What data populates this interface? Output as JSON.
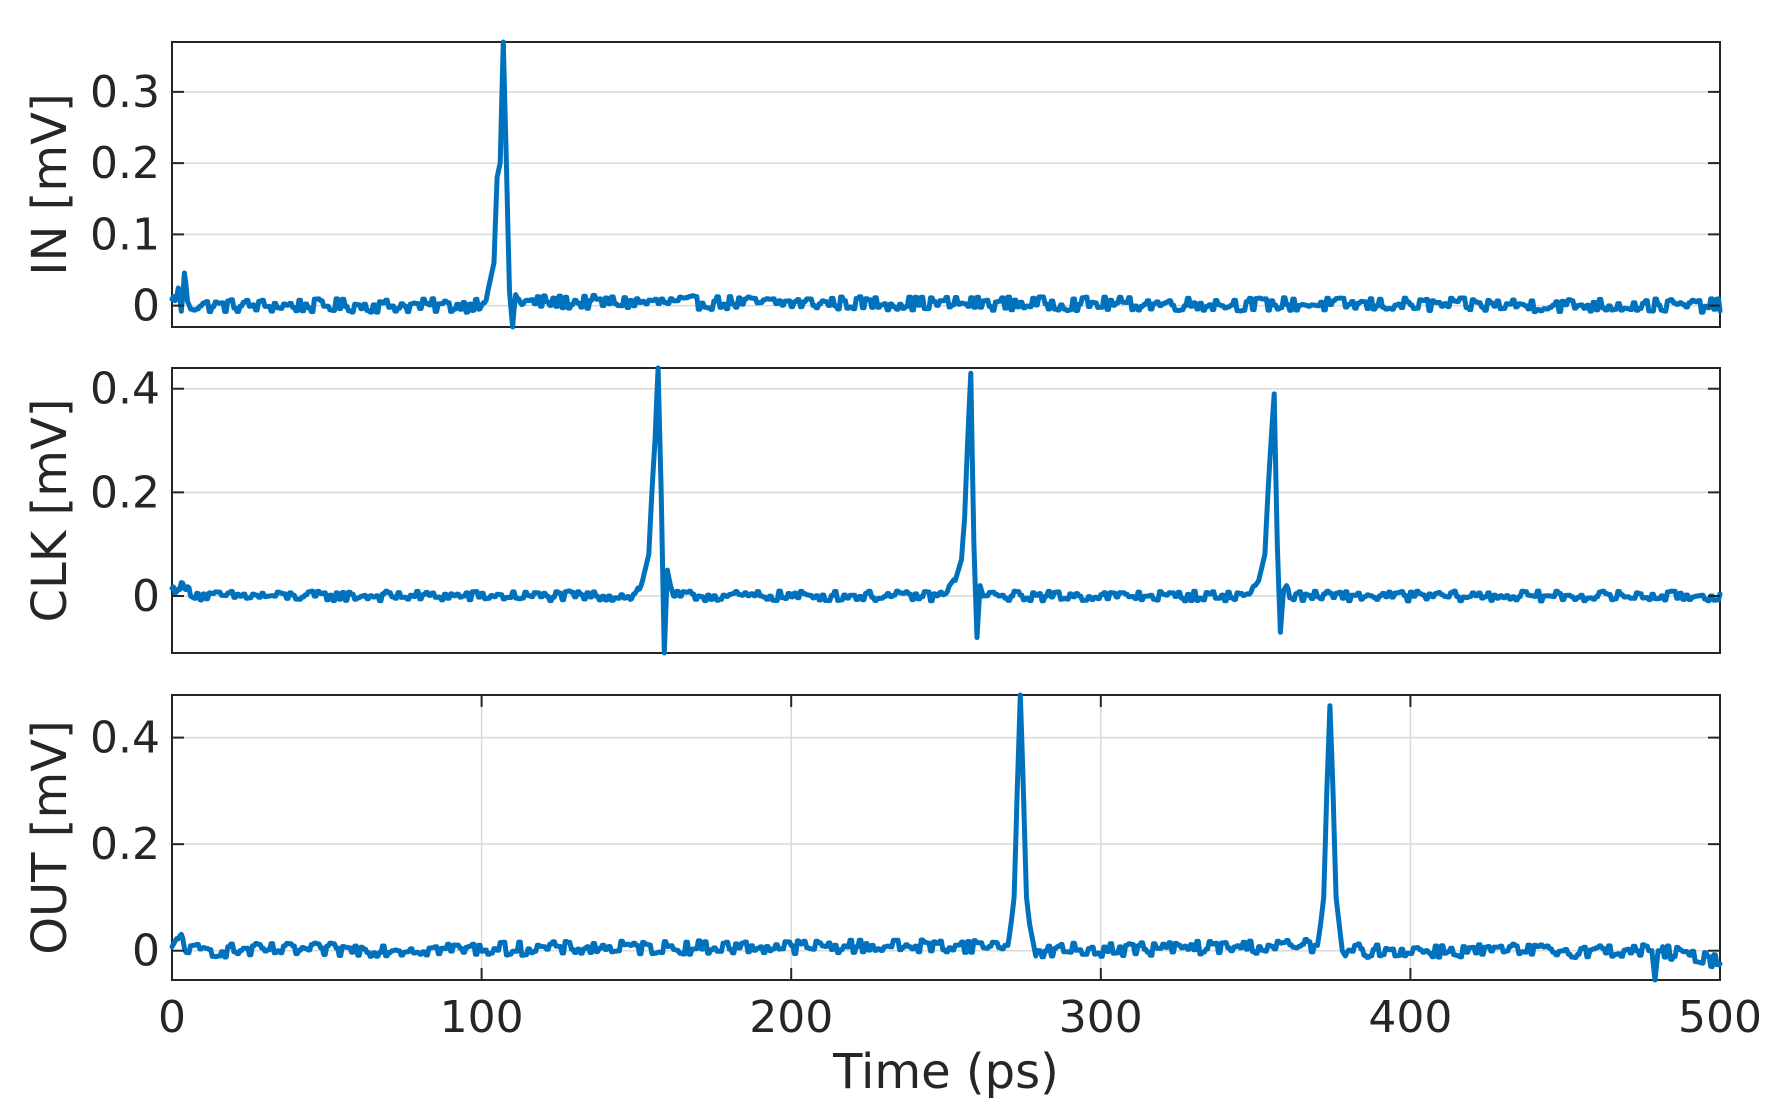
{
  "chart_data": [
    {
      "type": "line",
      "title": "",
      "xlabel": "",
      "ylabel": "IN [mV]",
      "xlim": [
        0,
        500
      ],
      "ylim": [
        -0.03,
        0.37
      ],
      "yticks": [
        0,
        0.1,
        0.2,
        0.3
      ],
      "ytick_labels": [
        "0",
        "0.1",
        "0.2",
        "0.3"
      ],
      "xticks_visible": false,
      "grid": "horizontal",
      "color": "#0072BD",
      "noise": 0.006,
      "series": [
        {
          "x": [
            0,
            2,
            3,
            4,
            5,
            6,
            95,
            100,
            102,
            104,
            105,
            106,
            107,
            108,
            109,
            110,
            111,
            112,
            113,
            115,
            500
          ],
          "y": [
            0.005,
            0.02,
            -0.005,
            0.04,
            0.01,
            0.0,
            0.0,
            0.005,
            0.02,
            0.06,
            0.18,
            0.2,
            0.37,
            0.2,
            0.02,
            -0.03,
            0.02,
            0.01,
            0.0,
            0.005,
            0.0
          ]
        }
      ]
    },
    {
      "type": "line",
      "title": "",
      "xlabel": "",
      "ylabel": "CLK [mV]",
      "xlim": [
        0,
        500
      ],
      "ylim": [
        -0.11,
        0.44
      ],
      "yticks": [
        0,
        0.2,
        0.4
      ],
      "ytick_labels": [
        "0",
        "0.2",
        "0.4"
      ],
      "xticks_visible": false,
      "grid": "horizontal",
      "color": "#0072BD",
      "noise": 0.006,
      "series": [
        {
          "x": [
            0,
            2,
            4,
            7,
            10,
            148,
            150,
            152,
            154,
            155,
            156,
            157,
            158,
            159,
            160,
            161,
            162,
            163,
            166,
            247,
            250,
            253,
            255,
            256,
            257,
            258,
            259,
            260,
            261,
            262,
            263,
            266,
            345,
            348,
            351,
            353,
            354,
            355,
            356,
            357,
            358,
            359,
            360,
            361,
            364,
            500
          ],
          "y": [
            0.01,
            0.02,
            0.015,
            0.005,
            0.0,
            0.0,
            0.005,
            0.03,
            0.08,
            0.2,
            0.3,
            0.44,
            0.2,
            -0.11,
            0.05,
            0.02,
            0.0,
            0.0,
            0.0,
            0.0,
            0.005,
            0.03,
            0.07,
            0.15,
            0.3,
            0.43,
            0.1,
            -0.08,
            0.02,
            0.0,
            0.0,
            0.0,
            0.0,
            0.005,
            0.03,
            0.08,
            0.2,
            0.3,
            0.39,
            0.1,
            -0.07,
            0.01,
            0.02,
            0.0,
            0.0,
            0.0
          ]
        }
      ]
    },
    {
      "type": "line",
      "title": "",
      "xlabel": "Time (ps)",
      "ylabel": "OUT [mV]",
      "xlim": [
        0,
        500
      ],
      "ylim": [
        -0.055,
        0.48
      ],
      "yticks": [
        0,
        0.2,
        0.4
      ],
      "ytick_labels": [
        "0",
        "0.2",
        "0.4"
      ],
      "xticks": [
        0,
        100,
        200,
        300,
        400,
        500
      ],
      "xtick_labels": [
        "0",
        "100",
        "200",
        "300",
        "400",
        "500"
      ],
      "xticks_visible": true,
      "grid": "both",
      "color": "#0072BD",
      "noise": 0.008,
      "series": [
        {
          "x": [
            0,
            3,
            5,
            270,
            271,
            272,
            273,
            274,
            275,
            276,
            277,
            278,
            279,
            280,
            281,
            370,
            371,
            372,
            373,
            374,
            375,
            376,
            377,
            378,
            379,
            380,
            478,
            479,
            480,
            500
          ],
          "y": [
            0.0,
            0.03,
            0.0,
            0.01,
            0.05,
            0.1,
            0.3,
            0.48,
            0.3,
            0.1,
            0.05,
            0.02,
            -0.01,
            0.0,
            0.0,
            0.01,
            0.05,
            0.1,
            0.3,
            0.46,
            0.3,
            0.1,
            0.05,
            0.0,
            -0.01,
            0.0,
            0.0,
            -0.055,
            0.0,
            -0.02
          ]
        }
      ]
    }
  ]
}
